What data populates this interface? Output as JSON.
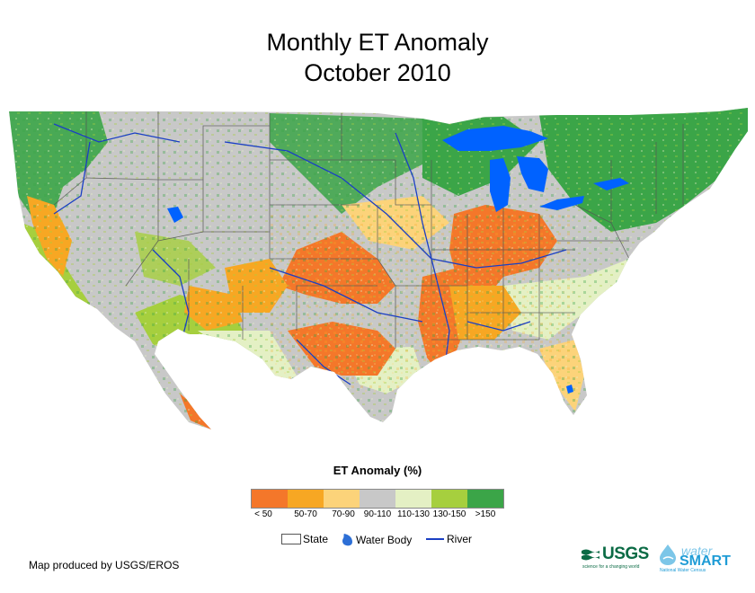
{
  "title": {
    "line1": "Monthly ET Anomaly",
    "line2": "October 2010"
  },
  "legend": {
    "title": "ET Anomaly (%)",
    "classes": [
      {
        "label": "< 50",
        "color": "#f4772a"
      },
      {
        "label": "50-70",
        "color": "#f7a723"
      },
      {
        "label": "70-90",
        "color": "#fcd37a"
      },
      {
        "label": "90-110",
        "color": "#c8c8c8"
      },
      {
        "label": "110-130",
        "color": "#e4f0c4"
      },
      {
        "label": "130-150",
        "color": "#a6cf3e"
      },
      {
        "label": ">150",
        "color": "#3ba548"
      }
    ],
    "keys": {
      "state": "State",
      "water_body": "Water Body",
      "river": "River"
    },
    "water_color": "#0062ff",
    "river_color": "#1a3fc4"
  },
  "credit": "Map produced by USGS/EROS",
  "logos": {
    "usgs": "USGS",
    "usgs_tagline": "science for a changing world",
    "water": "water",
    "smart": "SMART",
    "watersmart_tagline": "National Water Census"
  }
}
